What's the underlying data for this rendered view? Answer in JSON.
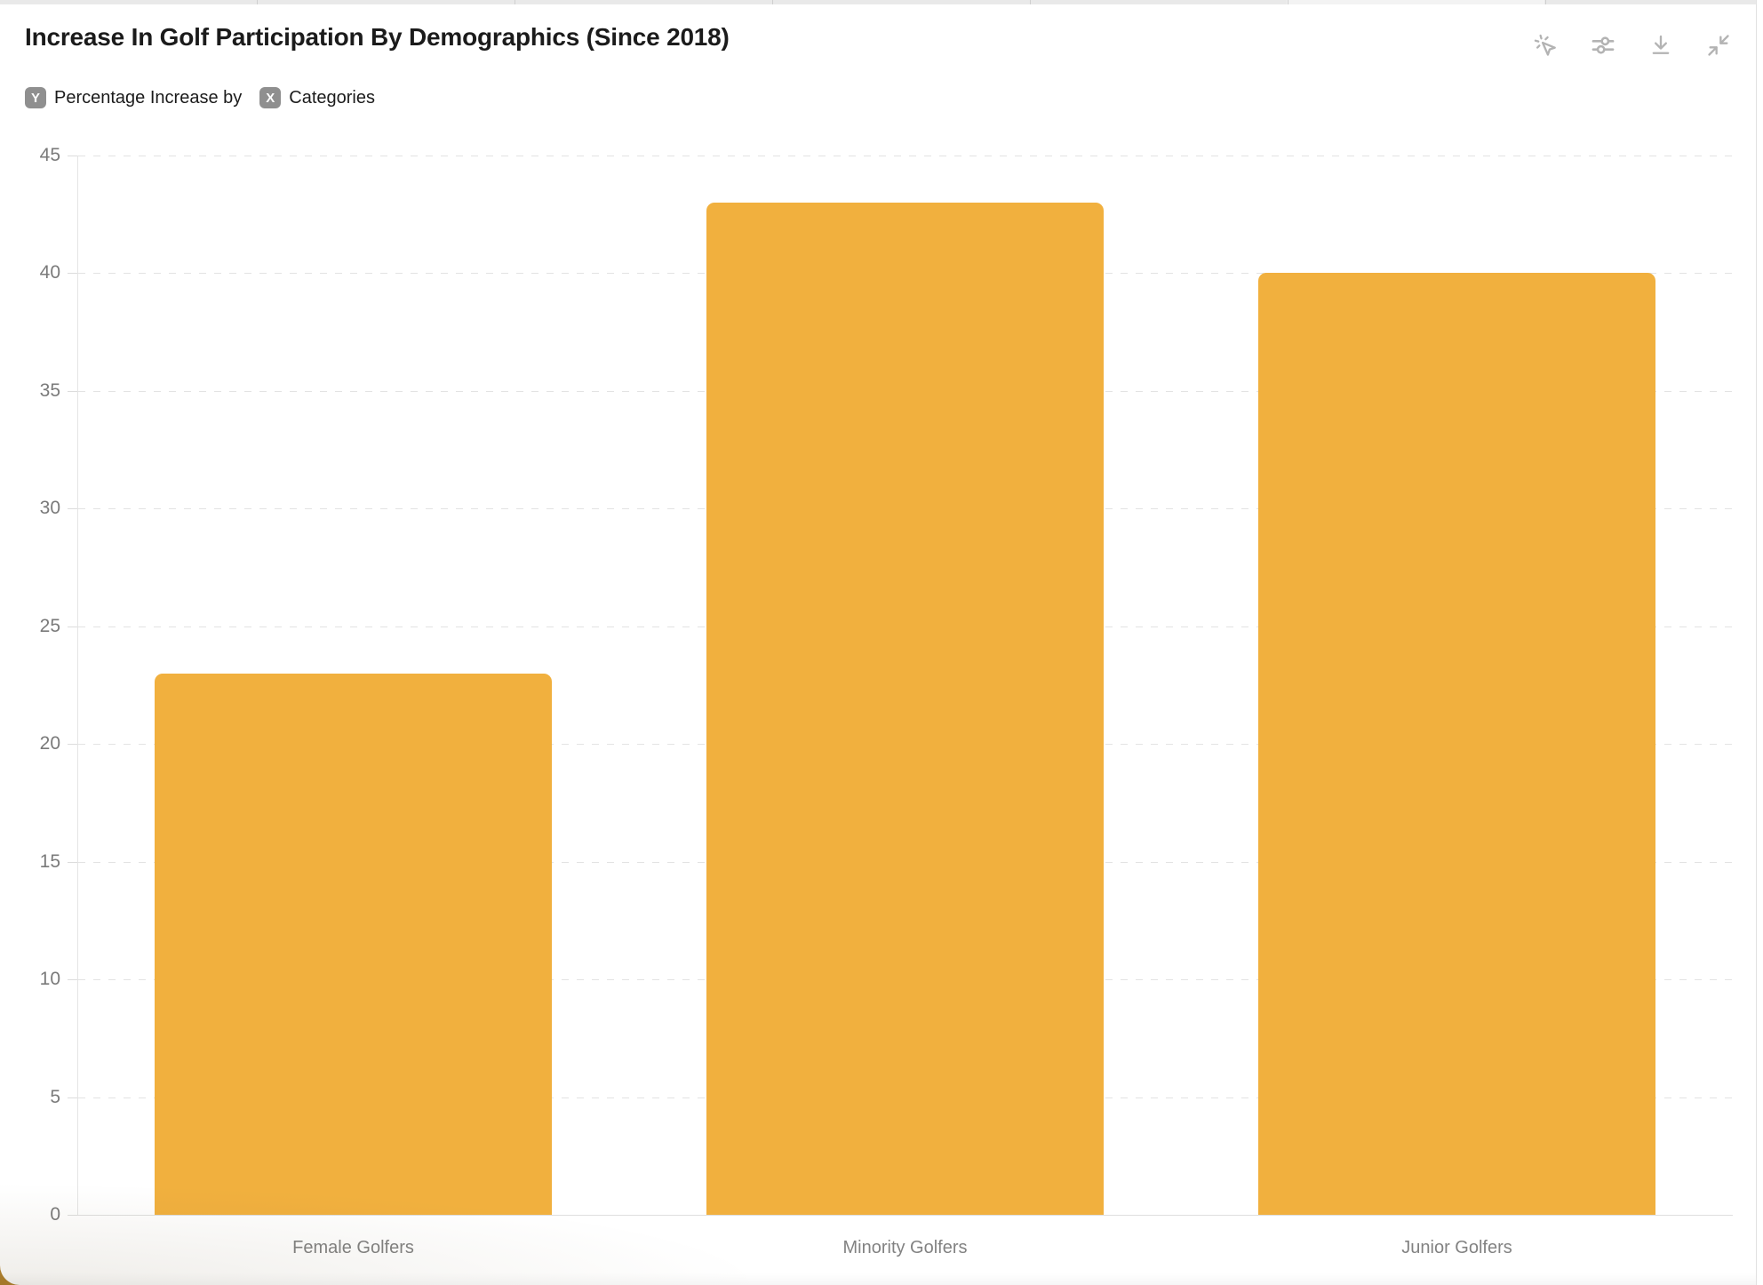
{
  "header": {
    "title": "Increase In Golf Participation By Demographics (Since 2018)",
    "axis_legend": {
      "y_badge": "Y",
      "y_label": "Percentage Increase by",
      "x_badge": "X",
      "x_label": "Categories"
    },
    "toolbar_icons": [
      "pointer-click-icon",
      "sliders-icon",
      "download-icon",
      "collapse-icon"
    ]
  },
  "colors": {
    "bar": "#F1B03E",
    "corner_accent": "#B1812C",
    "icon_gray": "#B3B3B3",
    "grid_gray": "#E3E3E3",
    "tick_text": "#7A7A7A"
  },
  "chart_data": {
    "type": "bar",
    "title": "Increase In Golf Participation By Demographics (Since 2018)",
    "categories": [
      "Female Golfers",
      "Minority Golfers",
      "Junior Golfers"
    ],
    "values": [
      23,
      43,
      40
    ],
    "ylabel": "Percentage Increase",
    "xlabel": "Categories",
    "ylim": [
      0,
      45
    ],
    "ytick_step": 5,
    "yticks": [
      0,
      5,
      10,
      15,
      20,
      25,
      30,
      35,
      40,
      45
    ],
    "bar_color": "#F1B03E",
    "grid": "horizontal-dashed",
    "legend": "none"
  }
}
